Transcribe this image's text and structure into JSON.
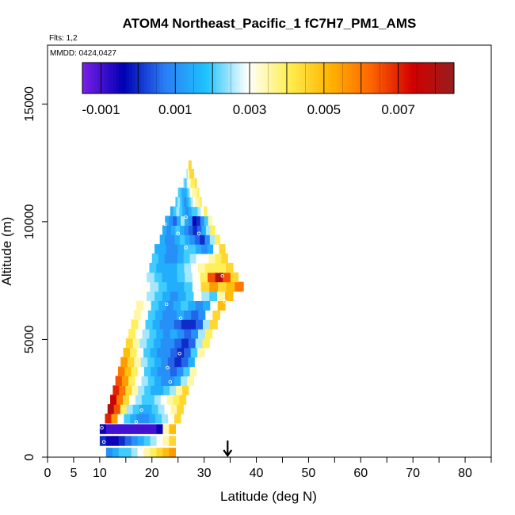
{
  "chart_data": {
    "type": "heatmap",
    "title": "ATOM4 Northeast_Pacific_1 fC7H7_PM1_AMS",
    "flights_label": "Flts: 1,2",
    "dates_label": "MMDD: 0424,0427",
    "xlabel": "Latitude (deg N)",
    "ylabel": "Altitude (m)",
    "xlim": [
      0,
      85
    ],
    "ylim": [
      0,
      17500
    ],
    "x_ticks": [
      0,
      5,
      10,
      20,
      30,
      40,
      50,
      60,
      70,
      80
    ],
    "x_tick_labels": [
      "0",
      "5",
      "10",
      "20",
      "30",
      "40",
      "50",
      "60",
      "70",
      "80"
    ],
    "x_minor_ticks": [
      15,
      25,
      35,
      45,
      55,
      65,
      75,
      85
    ],
    "y_ticks": [
      0,
      5000,
      10000,
      15000
    ],
    "y_tick_labels": [
      "0",
      "5000",
      "10000",
      "15000"
    ],
    "colorbar": {
      "min": -0.0015,
      "max": 0.0085,
      "tick_values": [
        -0.001,
        0.001,
        0.003,
        0.005,
        0.007
      ],
      "tick_labels": [
        "-0.001",
        "0.001",
        "0.003",
        "0.005",
        "0.007"
      ],
      "colors": [
        "#7a1fe6",
        "#0000b4",
        "#2a7ef5",
        "#1ec3ff",
        "#ffffff",
        "#ffef50",
        "#ffb400",
        "#ff6400",
        "#d20000",
        "#961e1e"
      ]
    },
    "marker_latitude": 34.5,
    "band_height_m": 400,
    "bands": [
      {
        "alt": 200,
        "x0": 10.0,
        "x1": 24.5,
        "v": [
          0.003,
          0.001,
          0.0015,
          0.002,
          0.002,
          0.0025,
          0.003,
          0.0035,
          0.004,
          0.0045,
          0.005,
          0.0055
        ]
      },
      {
        "alt": 700,
        "x0": 10.0,
        "x1": 24.5,
        "v": [
          0.0,
          -0.0005,
          -0.0005,
          0.0,
          0.0005,
          0.001,
          0.0015,
          0.002,
          0.0025,
          0.003,
          0.0035,
          0.0045
        ]
      },
      {
        "alt": 1200,
        "x0": 10.0,
        "x1": 24.5,
        "v": [
          -0.0005,
          -0.001,
          -0.001,
          -0.001,
          -0.001,
          -0.001,
          -0.001,
          -0.001,
          -0.001,
          -0.0005,
          0.0035,
          0.005
        ]
      },
      {
        "alt": 1650,
        "x0": 11.0,
        "x1": 25.5,
        "v": [
          0.007,
          0.0055,
          0.003,
          0.002,
          0.0015,
          0.001,
          0.001,
          0.0015,
          0.002,
          0.0025,
          0.003,
          0.0045
        ]
      },
      {
        "alt": 2050,
        "x0": 11.5,
        "x1": 26.0,
        "v": [
          0.008,
          0.0065,
          0.004,
          0.0025,
          0.002,
          0.0015,
          0.0015,
          0.002,
          0.0025,
          0.003,
          0.0035,
          0.0045
        ]
      },
      {
        "alt": 2450,
        "x0": 12.0,
        "x1": 26.5,
        "v": [
          0.0075,
          0.006,
          0.0045,
          0.003,
          0.0025,
          0.002,
          0.002,
          0.0025,
          0.003,
          0.0035,
          0.004,
          0.0045
        ]
      },
      {
        "alt": 2850,
        "x0": 12.5,
        "x1": 27.0,
        "v": [
          0.007,
          0.006,
          0.0045,
          0.0035,
          0.0025,
          0.002,
          0.0015,
          0.0015,
          0.002,
          0.0025,
          0.0035,
          0.0045
        ]
      },
      {
        "alt": 3250,
        "x0": 13.0,
        "x1": 28.0,
        "v": [
          0.0065,
          0.0055,
          0.004,
          0.003,
          0.0025,
          0.002,
          0.0015,
          0.001,
          0.001,
          0.0015,
          0.0025,
          0.0035
        ]
      },
      {
        "alt": 3650,
        "x0": 13.5,
        "x1": 28.5,
        "v": [
          0.006,
          0.005,
          0.004,
          0.003,
          0.002,
          0.0015,
          0.001,
          0.001,
          0.0005,
          0.001,
          0.002,
          0.0035
        ]
      },
      {
        "alt": 4050,
        "x0": 14.0,
        "x1": 29.5,
        "v": [
          0.0055,
          0.0045,
          0.0035,
          0.0025,
          0.002,
          0.0015,
          0.001,
          0.0005,
          0.0,
          0.0005,
          0.0015,
          0.003
        ]
      },
      {
        "alt": 4450,
        "x0": 14.5,
        "x1": 30.0,
        "v": [
          0.005,
          0.004,
          0.003,
          0.002,
          0.0015,
          0.001,
          0.001,
          0.0005,
          0.0,
          0.0005,
          0.002,
          0.0035
        ]
      },
      {
        "alt": 4850,
        "x0": 15.0,
        "x1": 31.0,
        "v": [
          0.0045,
          0.0035,
          0.0025,
          0.002,
          0.0015,
          0.001,
          0.001,
          0.0005,
          0.0,
          0.0005,
          0.0025,
          0.004
        ]
      },
      {
        "alt": 5250,
        "x0": 15.5,
        "x1": 31.5,
        "v": [
          0.004,
          0.003,
          0.0025,
          0.002,
          0.0015,
          0.001,
          0.0015,
          0.001,
          0.0005,
          0.001,
          0.0025,
          0.004
        ]
      },
      {
        "alt": 5650,
        "x0": 16.0,
        "x1": 32.5,
        "v": [
          0.004,
          0.003,
          0.002,
          0.0015,
          0.001,
          0.001,
          0.0005,
          0.0,
          0.0,
          0.0005,
          0.0025,
          0.0045
        ]
      },
      {
        "alt": 6050,
        "x0": 16.5,
        "x1": 33.0,
        "v": [
          0.0035,
          0.003,
          0.002,
          0.0015,
          0.001,
          0.001,
          0.0015,
          0.001,
          0.0005,
          0.001,
          0.003,
          0.0045
        ]
      },
      {
        "alt": 6450,
        "x0": 17.0,
        "x1": 34.0,
        "v": [
          0.0035,
          0.003,
          0.002,
          0.0015,
          0.001,
          0.0015,
          0.002,
          0.0015,
          0.001,
          0.0015,
          0.003,
          0.005
        ]
      },
      {
        "alt": 6850,
        "x0": 17.5,
        "x1": 35.5,
        "v": [
          0.003,
          0.0025,
          0.002,
          0.0015,
          0.001,
          0.0015,
          0.002,
          0.003,
          0.0025,
          0.002,
          0.0035,
          0.005
        ]
      },
      {
        "alt": 7250,
        "x0": 18.0,
        "x1": 37.5,
        "v": [
          0.003,
          0.0025,
          0.002,
          0.0015,
          0.0015,
          0.002,
          0.003,
          0.0045,
          0.0055,
          0.0045,
          0.005,
          0.006
        ]
      },
      {
        "alt": 7650,
        "x0": 19.0,
        "x1": 36.5,
        "v": [
          0.0025,
          0.002,
          0.0015,
          0.0015,
          0.002,
          0.0025,
          0.003,
          0.004,
          0.0065,
          0.008,
          0.0065,
          0.0045
        ]
      },
      {
        "alt": 8050,
        "x0": 19.5,
        "x1": 35.5,
        "v": [
          0.002,
          0.0015,
          0.0015,
          0.0015,
          0.002,
          0.0025,
          0.003,
          0.0035,
          0.004,
          0.004,
          0.004,
          0.0045
        ]
      },
      {
        "alt": 8450,
        "x0": 20.0,
        "x1": 34.5,
        "v": [
          0.002,
          0.0015,
          0.001,
          0.001,
          0.0015,
          0.002,
          0.0025,
          0.003,
          0.003,
          0.0035,
          0.004,
          0.0045
        ]
      },
      {
        "alt": 8850,
        "x0": 20.5,
        "x1": 34.0,
        "v": [
          0.0015,
          0.0015,
          0.001,
          0.001,
          0.0015,
          0.002,
          0.002,
          0.0015,
          0.001,
          0.0015,
          0.003,
          0.0045
        ]
      },
      {
        "alt": 9250,
        "x0": 21.5,
        "x1": 33.0,
        "v": [
          0.0015,
          0.001,
          0.001,
          0.0015,
          0.002,
          0.0015,
          0.001,
          0.0005,
          0.0,
          0.001,
          0.0025,
          0.004
        ]
      },
      {
        "alt": 9650,
        "x0": 22.0,
        "x1": 32.0,
        "v": [
          0.0015,
          0.001,
          0.0015,
          0.002,
          0.0015,
          0.001,
          0.0005,
          0.0,
          0.0005,
          0.0015,
          0.0025,
          0.004
        ]
      },
      {
        "alt": 10050,
        "x0": 22.5,
        "x1": 31.5,
        "v": [
          0.0015,
          0.001,
          0.0005,
          0.0015,
          0.0025,
          0.0015,
          0.001,
          -0.0005,
          0.0,
          0.001,
          0.002,
          0.0035
        ]
      },
      {
        "alt": 10450,
        "x0": 23.5,
        "x1": 30.5,
        "v": [
          0.0015,
          0.002,
          0.0025,
          0.002,
          0.0015,
          0.001,
          0.0015,
          0.002,
          0.002,
          0.0025,
          0.003,
          0.004
        ]
      },
      {
        "alt": 10850,
        "x0": 24.5,
        "x1": 29.5,
        "v": [
          0.002,
          0.0025,
          0.002,
          0.0015,
          0.001,
          0.0015,
          0.002,
          0.0025,
          0.003,
          0.0035,
          0.0035,
          0.004
        ]
      },
      {
        "alt": 11250,
        "x0": 25.0,
        "x1": 29.0,
        "v": [
          0.002,
          0.002,
          0.0015,
          0.0015,
          0.0015,
          0.002,
          0.0025,
          0.003,
          0.0035,
          0.0035,
          0.0035,
          0.004
        ]
      },
      {
        "alt": 11650,
        "x0": 26.0,
        "x1": 28.5,
        "v": [
          0.0025,
          0.002,
          0.002,
          0.0025,
          0.003,
          0.0035,
          0.0035,
          0.004,
          0.004,
          0.004,
          0.004,
          0.0045
        ]
      },
      {
        "alt": 12050,
        "x0": 26.5,
        "x1": 28.0,
        "v": [
          0.003,
          0.0025,
          0.0025,
          0.003,
          0.0035,
          0.004,
          0.0045,
          0.0045,
          0.0045,
          0.0045,
          0.0045,
          0.0045
        ]
      },
      {
        "alt": 12400,
        "x0": 27.0,
        "x1": 27.5,
        "v": [
          0.0045,
          0.0045,
          0.0045,
          0.0045,
          0.0045,
          0.0045,
          0.0045,
          0.0045,
          0.0045,
          0.0045,
          0.0045,
          0.0045
        ]
      }
    ],
    "points": [
      {
        "lat": 10.3,
        "alt": 150
      },
      {
        "lat": 10.8,
        "alt": 650
      },
      {
        "lat": 10.4,
        "alt": 1250
      },
      {
        "lat": 17.0,
        "alt": 1500
      },
      {
        "lat": 18.0,
        "alt": 2000
      },
      {
        "lat": 16.0,
        "alt": 2500
      },
      {
        "lat": 23.5,
        "alt": 3200
      },
      {
        "lat": 23.0,
        "alt": 3800
      },
      {
        "lat": 25.3,
        "alt": 4400
      },
      {
        "lat": 25.5,
        "alt": 5900
      },
      {
        "lat": 22.8,
        "alt": 6500
      },
      {
        "lat": 34.0,
        "alt": 6600
      },
      {
        "lat": 33.5,
        "alt": 7700
      },
      {
        "lat": 38.0,
        "alt": 7300
      },
      {
        "lat": 26.5,
        "alt": 8900
      },
      {
        "lat": 25.0,
        "alt": 9500
      },
      {
        "lat": 29.0,
        "alt": 9500
      },
      {
        "lat": 22.5,
        "alt": 9900
      },
      {
        "lat": 26.5,
        "alt": 10200
      },
      {
        "lat": 27.0,
        "alt": 11700
      }
    ]
  }
}
